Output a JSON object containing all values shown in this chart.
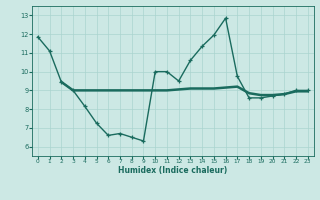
{
  "title": "",
  "xlabel": "Humidex (Indice chaleur)",
  "ylabel": "",
  "bg_color": "#cce8e4",
  "grid_color": "#aad4cf",
  "line_color": "#1a6b5e",
  "xlim": [
    -0.5,
    23.5
  ],
  "ylim": [
    5.5,
    13.5
  ],
  "yticks": [
    6,
    7,
    8,
    9,
    10,
    11,
    12,
    13
  ],
  "xticks": [
    0,
    1,
    2,
    3,
    4,
    5,
    6,
    7,
    8,
    9,
    10,
    11,
    12,
    13,
    14,
    15,
    16,
    17,
    18,
    19,
    20,
    21,
    22,
    23
  ],
  "data_x": [
    0,
    1,
    2,
    3,
    4,
    5,
    6,
    7,
    8,
    9,
    10,
    11,
    12,
    13,
    14,
    15,
    16,
    17,
    18,
    19,
    20,
    21,
    22,
    23
  ],
  "data_y": [
    11.85,
    11.1,
    9.45,
    9.0,
    8.15,
    7.25,
    6.6,
    6.7,
    6.5,
    6.3,
    10.0,
    10.0,
    9.5,
    10.6,
    11.35,
    11.95,
    12.85,
    9.75,
    8.6,
    8.6,
    8.7,
    8.8,
    9.0,
    9.0
  ],
  "trend_x": [
    2,
    3,
    4,
    5,
    6,
    7,
    8,
    9,
    10,
    11,
    12,
    13,
    14,
    15,
    16,
    17,
    18,
    19,
    20,
    21,
    22,
    23
  ],
  "trend_y": [
    9.45,
    9.0,
    9.0,
    9.0,
    9.0,
    9.0,
    9.0,
    9.0,
    9.0,
    9.0,
    9.05,
    9.1,
    9.1,
    9.1,
    9.15,
    9.2,
    8.85,
    8.75,
    8.75,
    8.8,
    8.95,
    8.95
  ]
}
